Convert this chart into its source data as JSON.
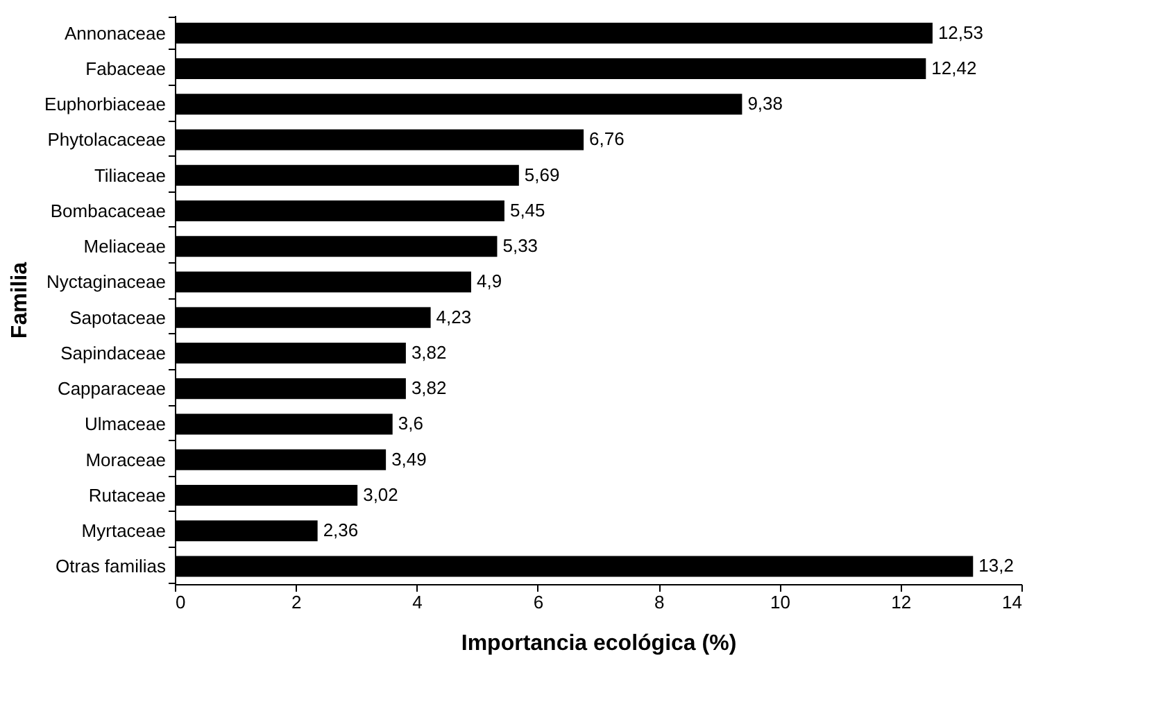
{
  "chart_data": {
    "type": "bar",
    "orientation": "horizontal",
    "xlabel": "Importancia ecológica (%)",
    "ylabel": "Familia",
    "categories": [
      "Annonaceae",
      "Fabaceae",
      "Euphorbiaceae",
      "Phytolacaceae",
      "Tiliaceae",
      "Bombacaceae",
      "Meliaceae",
      "Nyctaginaceae",
      "Sapotaceae",
      "Sapindaceae",
      "Capparaceae",
      "Ulmaceae",
      "Moraceae",
      "Rutaceae",
      "Myrtaceae",
      "Otras familias"
    ],
    "values": [
      12.53,
      12.42,
      9.38,
      6.76,
      5.69,
      5.45,
      5.33,
      4.9,
      4.23,
      3.82,
      3.82,
      3.6,
      3.49,
      3.02,
      2.36,
      13.2
    ],
    "value_labels": [
      "12,53",
      "12,42",
      "9,38",
      "6,76",
      "5,69",
      "5,45",
      "5,33",
      "4,9",
      "4,23",
      "3,82",
      "3,82",
      "3,6",
      "3,49",
      "3,02",
      "2,36",
      "13,2"
    ],
    "color": "#000000",
    "xlim": [
      0,
      14
    ],
    "xticks": [
      0,
      2,
      4,
      6,
      8,
      10,
      12,
      14
    ],
    "grid": false
  }
}
